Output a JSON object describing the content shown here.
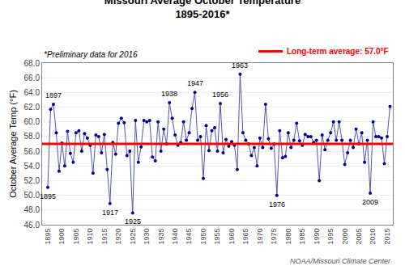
{
  "chart_data": {
    "type": "line",
    "title": "Missouri Average October Temperature",
    "subtitle": "1895-2016*",
    "y_label": "October Average Temp (°F)",
    "note": "*Preliminary data for 2016",
    "source": "NOAA/Missouri Climate Center",
    "x": [
      1895,
      1896,
      1897,
      1898,
      1899,
      1900,
      1901,
      1902,
      1903,
      1904,
      1905,
      1906,
      1907,
      1908,
      1909,
      1910,
      1911,
      1912,
      1913,
      1914,
      1915,
      1916,
      1917,
      1918,
      1919,
      1920,
      1921,
      1922,
      1923,
      1924,
      1925,
      1926,
      1927,
      1928,
      1929,
      1930,
      1931,
      1932,
      1933,
      1934,
      1935,
      1936,
      1937,
      1938,
      1939,
      1940,
      1941,
      1942,
      1943,
      1944,
      1945,
      1946,
      1947,
      1948,
      1949,
      1950,
      1951,
      1952,
      1953,
      1954,
      1955,
      1956,
      1957,
      1958,
      1959,
      1960,
      1961,
      1962,
      1963,
      1964,
      1965,
      1966,
      1967,
      1968,
      1969,
      1970,
      1971,
      1972,
      1973,
      1974,
      1975,
      1976,
      1977,
      1978,
      1979,
      1980,
      1981,
      1982,
      1983,
      1984,
      1985,
      1986,
      1987,
      1988,
      1989,
      1990,
      1991,
      1992,
      1993,
      1994,
      1995,
      1996,
      1997,
      1998,
      1999,
      2000,
      2001,
      2002,
      2003,
      2004,
      2005,
      2006,
      2007,
      2008,
      2009,
      2010,
      2011,
      2012,
      2013,
      2014,
      2015,
      2016
    ],
    "series": [
      {
        "type": "line",
        "color": "#5555AA",
        "values": [
          51.1,
          61.7,
          62.4,
          58.5,
          53.3,
          57.1,
          54.0,
          58.7,
          55.7,
          54.5,
          58.5,
          58.8,
          56.0,
          58.4,
          57.8,
          56.8,
          53.0,
          58.2,
          58.0,
          55.8,
          58.3,
          53.5,
          48.9,
          57.2,
          55.6,
          59.8,
          60.5,
          59.9,
          55.4,
          56.0,
          47.6,
          60.2,
          54.5,
          56.6,
          60.2,
          60.0,
          60.2,
          55.2,
          54.7,
          60.0,
          56.0,
          59.0,
          57.0,
          62.6,
          60.5,
          58.2,
          56.8,
          57.2,
          60.0,
          57.5,
          58.5,
          61.8,
          64.0,
          57.5,
          58.0,
          52.3,
          59.5,
          56.1,
          58.8,
          59.2,
          56.0,
          62.5,
          55.8,
          57.6,
          56.7,
          57.3,
          56.8,
          53.5,
          66.5,
          58.5,
          57.5,
          57.0,
          55.4,
          56.5,
          54.0,
          57.8,
          56.5,
          62.4,
          57.7,
          56.4,
          57.0,
          50.0,
          58.8,
          55.1,
          55.3,
          58.5,
          56.5,
          57.5,
          59.8,
          57.4,
          56.8,
          58.3,
          58.0,
          58.0,
          57.2,
          57.5,
          52.0,
          58.2,
          56.2,
          57.5,
          58.5,
          60.0,
          57.5,
          60.0,
          57.5,
          54.2,
          55.8,
          57.5,
          56.5,
          59.0,
          57.0,
          58.5,
          54.5,
          57.5,
          50.3,
          60.0,
          58.0,
          58.0,
          57.8,
          54.3,
          58.0,
          62.1
        ]
      },
      {
        "type": "scatter",
        "color": "#00008B",
        "marker": "circle",
        "values": [
          51.1,
          61.7,
          62.4,
          58.5,
          53.3,
          57.1,
          54.0,
          58.7,
          55.7,
          54.5,
          58.5,
          58.8,
          56.0,
          58.4,
          57.8,
          56.8,
          53.0,
          58.2,
          58.0,
          55.8,
          58.3,
          53.5,
          48.9,
          57.2,
          55.6,
          59.8,
          60.5,
          59.9,
          55.4,
          56.0,
          47.6,
          60.2,
          54.5,
          56.6,
          60.2,
          60.0,
          60.2,
          55.2,
          54.7,
          60.0,
          56.0,
          59.0,
          57.0,
          62.6,
          60.5,
          58.2,
          56.8,
          57.2,
          60.0,
          57.5,
          58.5,
          61.8,
          64.0,
          57.5,
          58.0,
          52.3,
          59.5,
          56.1,
          58.8,
          59.2,
          56.0,
          62.5,
          55.8,
          57.6,
          56.7,
          57.3,
          56.8,
          53.5,
          66.5,
          58.5,
          57.5,
          57.0,
          55.4,
          56.5,
          54.0,
          57.8,
          56.5,
          62.4,
          57.7,
          56.4,
          57.0,
          50.0,
          58.8,
          55.1,
          55.3,
          58.5,
          56.5,
          57.5,
          59.8,
          57.4,
          56.8,
          58.3,
          58.0,
          58.0,
          57.2,
          57.5,
          52.0,
          58.2,
          56.2,
          57.5,
          58.5,
          60.0,
          57.5,
          60.0,
          57.5,
          54.2,
          55.8,
          57.5,
          56.5,
          59.0,
          57.0,
          58.5,
          54.5,
          57.5,
          50.3,
          60.0,
          58.0,
          58.0,
          57.8,
          54.3,
          58.0,
          62.1
        ]
      }
    ],
    "reference_line": {
      "name": "Long-term average: 57.0°F",
      "value": 57.0,
      "color": "#FF0000"
    },
    "annotations": [
      {
        "text": "1895",
        "x": 1895,
        "y": 51.1
      },
      {
        "text": "1897",
        "x": 1897,
        "y": 62.4
      },
      {
        "text": "1917",
        "x": 1917,
        "y": 48.9
      },
      {
        "text": "1925",
        "x": 1925,
        "y": 47.6
      },
      {
        "text": "1938",
        "x": 1938,
        "y": 62.6
      },
      {
        "text": "1947",
        "x": 1947,
        "y": 64.0
      },
      {
        "text": "1956",
        "x": 1956,
        "y": 62.5
      },
      {
        "text": "1963",
        "x": 1963,
        "y": 66.5
      },
      {
        "text": "1976",
        "x": 1976,
        "y": 50.0
      },
      {
        "text": "2009",
        "x": 2009,
        "y": 50.3
      }
    ],
    "xlim": [
      1893,
      2017
    ],
    "xticks": [
      1895,
      1900,
      1905,
      1910,
      1915,
      1920,
      1925,
      1930,
      1935,
      1940,
      1945,
      1950,
      1955,
      1960,
      1965,
      1970,
      1975,
      1980,
      1985,
      1990,
      1995,
      2000,
      2005,
      2010,
      2015
    ],
    "ylim": [
      46.0,
      68.0
    ],
    "yticks": [
      {
        "value": 46.0,
        "label": "46.0"
      },
      {
        "value": 48.0,
        "label": "48.0"
      },
      {
        "value": 50.0,
        "label": "50.0"
      },
      {
        "value": 52.0,
        "label": "52.0"
      },
      {
        "value": 54.0,
        "label": "54.0"
      },
      {
        "value": 56.0,
        "label": "56.0"
      },
      {
        "value": 58.0,
        "label": "58.0"
      },
      {
        "value": 60.0,
        "label": "60.0"
      },
      {
        "value": 62.0,
        "label": "62.0"
      },
      {
        "value": 64.0,
        "label": "64.0"
      },
      {
        "value": 66.0,
        "label": "66.0"
      },
      {
        "value": 68.0,
        "label": "68.0"
      }
    ],
    "grid": "y",
    "legend": "upper right"
  }
}
